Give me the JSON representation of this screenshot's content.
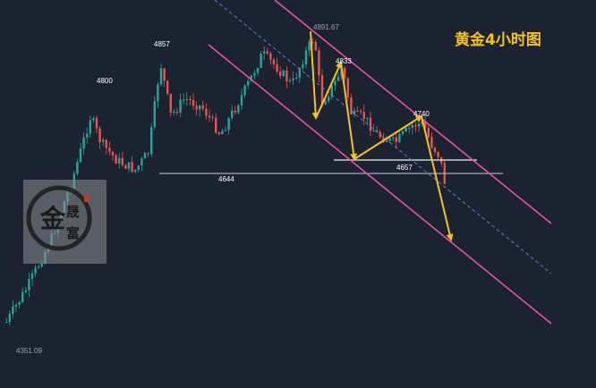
{
  "chart_data": {
    "type": "candlestick",
    "title": "黄金4小时图",
    "colors": {
      "background": "#1b2230",
      "up": "#26a69a",
      "down": "#ef5350",
      "channel": "#ec4fa6",
      "midline": "#5b7fcf",
      "arrows": "#f7c21c",
      "support": "#c9ced6",
      "title": "#f7c21c"
    },
    "annotations": [
      {
        "id": "low-4351",
        "text": "4351.09",
        "price": 4351.09
      },
      {
        "id": "level-4800",
        "text": "4800",
        "price": 4800
      },
      {
        "id": "level-4857",
        "text": "4857",
        "price": 4857
      },
      {
        "id": "low-4644",
        "text": "4644",
        "price": 4644
      },
      {
        "id": "high-4891",
        "text": "4891.67",
        "price": 4891.67
      },
      {
        "id": "level-4833",
        "text": "4833",
        "price": 4833
      },
      {
        "id": "level-4740",
        "text": "4740",
        "price": 4740
      },
      {
        "id": "level-4657",
        "text": "4657",
        "price": 4657
      }
    ],
    "support_levels": [
      4644,
      4657
    ],
    "channel": "descending, parallel pink lines with dashed midline",
    "watermark_seal": {
      "outer": "金",
      "inner": [
        "晟",
        "富"
      ]
    }
  }
}
